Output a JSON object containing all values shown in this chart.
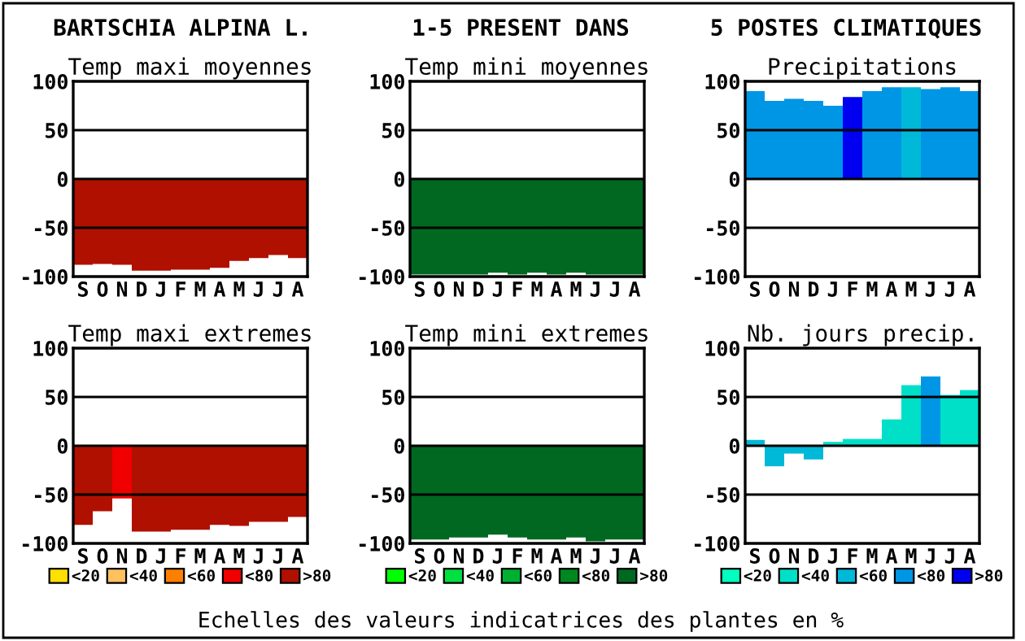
{
  "chart_data": [
    {
      "type": "other",
      "annotations": [
        "BARTSCHIA ALPINA L.",
        "1-5 PRESENT DANS",
        "5 POSTES CLIMATIQUES",
        "Echelles des valeurs indicatrices des plantes en %"
      ]
    },
    {
      "type": "bar",
      "title": "Temp maxi moyennes",
      "categories": [
        "S",
        "O",
        "N",
        "D",
        "J",
        "F",
        "M",
        "A",
        "M",
        "J",
        "J",
        "A"
      ],
      "values": [
        -88,
        -87,
        -88,
        -94,
        -94,
        -93,
        -93,
        -91,
        -84,
        -81,
        -78,
        -81
      ],
      "colors": [
        "#b01000",
        "#b01000",
        "#b01000",
        "#b01000",
        "#b01000",
        "#b01000",
        "#b01000",
        "#b01000",
        "#b01000",
        "#b01000",
        "#b01000",
        "#b01000"
      ],
      "ylim": [
        -100,
        100
      ],
      "yticks": [
        -100,
        -50,
        0,
        50,
        100
      ],
      "grid": "y"
    },
    {
      "type": "bar",
      "title": "Temp mini moyennes",
      "categories": [
        "S",
        "O",
        "N",
        "D",
        "J",
        "F",
        "M",
        "A",
        "M",
        "J",
        "J",
        "A"
      ],
      "values": [
        -98,
        -98,
        -98,
        -98,
        -96,
        -98,
        -96,
        -98,
        -96,
        -98,
        -98,
        -98
      ],
      "colors": [
        "#006820",
        "#006820",
        "#006820",
        "#006820",
        "#006820",
        "#006820",
        "#006820",
        "#006820",
        "#006820",
        "#006820",
        "#006820",
        "#006820"
      ],
      "ylim": [
        -100,
        100
      ],
      "yticks": [
        -100,
        -50,
        0,
        50,
        100
      ],
      "grid": "y"
    },
    {
      "type": "bar",
      "title": "Precipitations",
      "categories": [
        "S",
        "O",
        "N",
        "D",
        "J",
        "F",
        "M",
        "A",
        "M",
        "J",
        "J",
        "A"
      ],
      "values": [
        90,
        80,
        82,
        80,
        75,
        84,
        90,
        94,
        94,
        92,
        94,
        90
      ],
      "colors": [
        "#0096e6",
        "#0096e6",
        "#0096e6",
        "#0096e6",
        "#0096e6",
        "#0000f0",
        "#0096e6",
        "#0096e6",
        "#00b8d8",
        "#0096e6",
        "#0096e6",
        "#0096e6"
      ],
      "ylim": [
        -100,
        100
      ],
      "yticks": [
        -100,
        -50,
        0,
        50,
        100
      ],
      "grid": "y"
    },
    {
      "type": "bar",
      "title": "Temp maxi extremes",
      "categories": [
        "S",
        "O",
        "N",
        "D",
        "J",
        "F",
        "M",
        "A",
        "M",
        "J",
        "J",
        "A"
      ],
      "legend": "bottom",
      "ylim": [
        -100,
        100
      ],
      "yticks": [
        -100,
        -50,
        0,
        50,
        100
      ],
      "grid": "y",
      "series": [
        {
          "name": "<20",
          "color": "#ffe000",
          "values": [
            null,
            null,
            null,
            null,
            null,
            null,
            null,
            null,
            null,
            null,
            null,
            null
          ]
        },
        {
          "name": "<40",
          "color": "#ffc060",
          "values": [
            null,
            null,
            null,
            null,
            null,
            null,
            null,
            null,
            null,
            null,
            null,
            null
          ]
        },
        {
          "name": "<60",
          "color": "#ff8000",
          "values": [
            null,
            null,
            null,
            null,
            null,
            null,
            null,
            null,
            null,
            null,
            null,
            null
          ]
        },
        {
          "name": "<80",
          "color": "#f00000",
          "values": [
            null,
            null,
            -54,
            null,
            null,
            null,
            null,
            null,
            null,
            null,
            null,
            null
          ]
        },
        {
          "name": ">80",
          "color": "#b01000",
          "values": [
            -81,
            -67,
            null,
            -88,
            -88,
            -86,
            -86,
            -81,
            -82,
            -78,
            -78,
            -73
          ]
        }
      ]
    },
    {
      "type": "bar",
      "title": "Temp mini extremes",
      "categories": [
        "S",
        "O",
        "N",
        "D",
        "J",
        "F",
        "M",
        "A",
        "M",
        "J",
        "J",
        "A"
      ],
      "legend": "bottom",
      "ylim": [
        -100,
        100
      ],
      "yticks": [
        -100,
        -50,
        0,
        50,
        100
      ],
      "grid": "y",
      "series": [
        {
          "name": "<20",
          "color": "#00ff00",
          "values": [
            null,
            null,
            null,
            null,
            null,
            null,
            null,
            null,
            null,
            null,
            null,
            null
          ]
        },
        {
          "name": "<40",
          "color": "#00e040",
          "values": [
            null,
            null,
            null,
            null,
            null,
            null,
            null,
            null,
            null,
            null,
            null,
            null
          ]
        },
        {
          "name": "<60",
          "color": "#00b030",
          "values": [
            null,
            null,
            null,
            null,
            null,
            null,
            null,
            null,
            null,
            null,
            null,
            null
          ]
        },
        {
          "name": "<80",
          "color": "#008820",
          "values": [
            null,
            null,
            null,
            null,
            null,
            null,
            null,
            null,
            null,
            null,
            null,
            null
          ]
        },
        {
          "name": ">80",
          "color": "#006820",
          "values": [
            -96,
            -96,
            -94,
            -94,
            -91,
            -94,
            -96,
            -96,
            -94,
            -98,
            -96,
            -96
          ]
        }
      ]
    },
    {
      "type": "bar",
      "title": "Nb. jours precip.",
      "categories": [
        "S",
        "O",
        "N",
        "D",
        "J",
        "F",
        "M",
        "A",
        "M",
        "J",
        "J",
        "A"
      ],
      "legend": "bottom",
      "ylim": [
        -100,
        100
      ],
      "yticks": [
        -100,
        -50,
        0,
        50,
        100
      ],
      "grid": "y",
      "series": [
        {
          "name": "<20",
          "color": "#00ffc0",
          "values": [
            null,
            null,
            null,
            null,
            null,
            null,
            null,
            null,
            null,
            null,
            null,
            null
          ]
        },
        {
          "name": "<40",
          "color": "#00e0c8",
          "values": [
            null,
            null,
            null,
            null,
            4,
            7,
            7,
            27,
            62,
            null,
            52,
            57
          ]
        },
        {
          "name": "<60",
          "color": "#00b8d8",
          "values": [
            6,
            -21,
            -8,
            -14,
            null,
            null,
            null,
            null,
            null,
            null,
            null,
            null
          ]
        },
        {
          "name": "<80",
          "color": "#0096e6",
          "values": [
            null,
            null,
            null,
            null,
            null,
            null,
            null,
            null,
            null,
            71,
            null,
            null
          ]
        },
        {
          "name": ">80",
          "color": "#0000f0",
          "values": [
            null,
            null,
            null,
            null,
            null,
            null,
            null,
            null,
            null,
            null,
            null,
            null
          ]
        }
      ]
    }
  ]
}
